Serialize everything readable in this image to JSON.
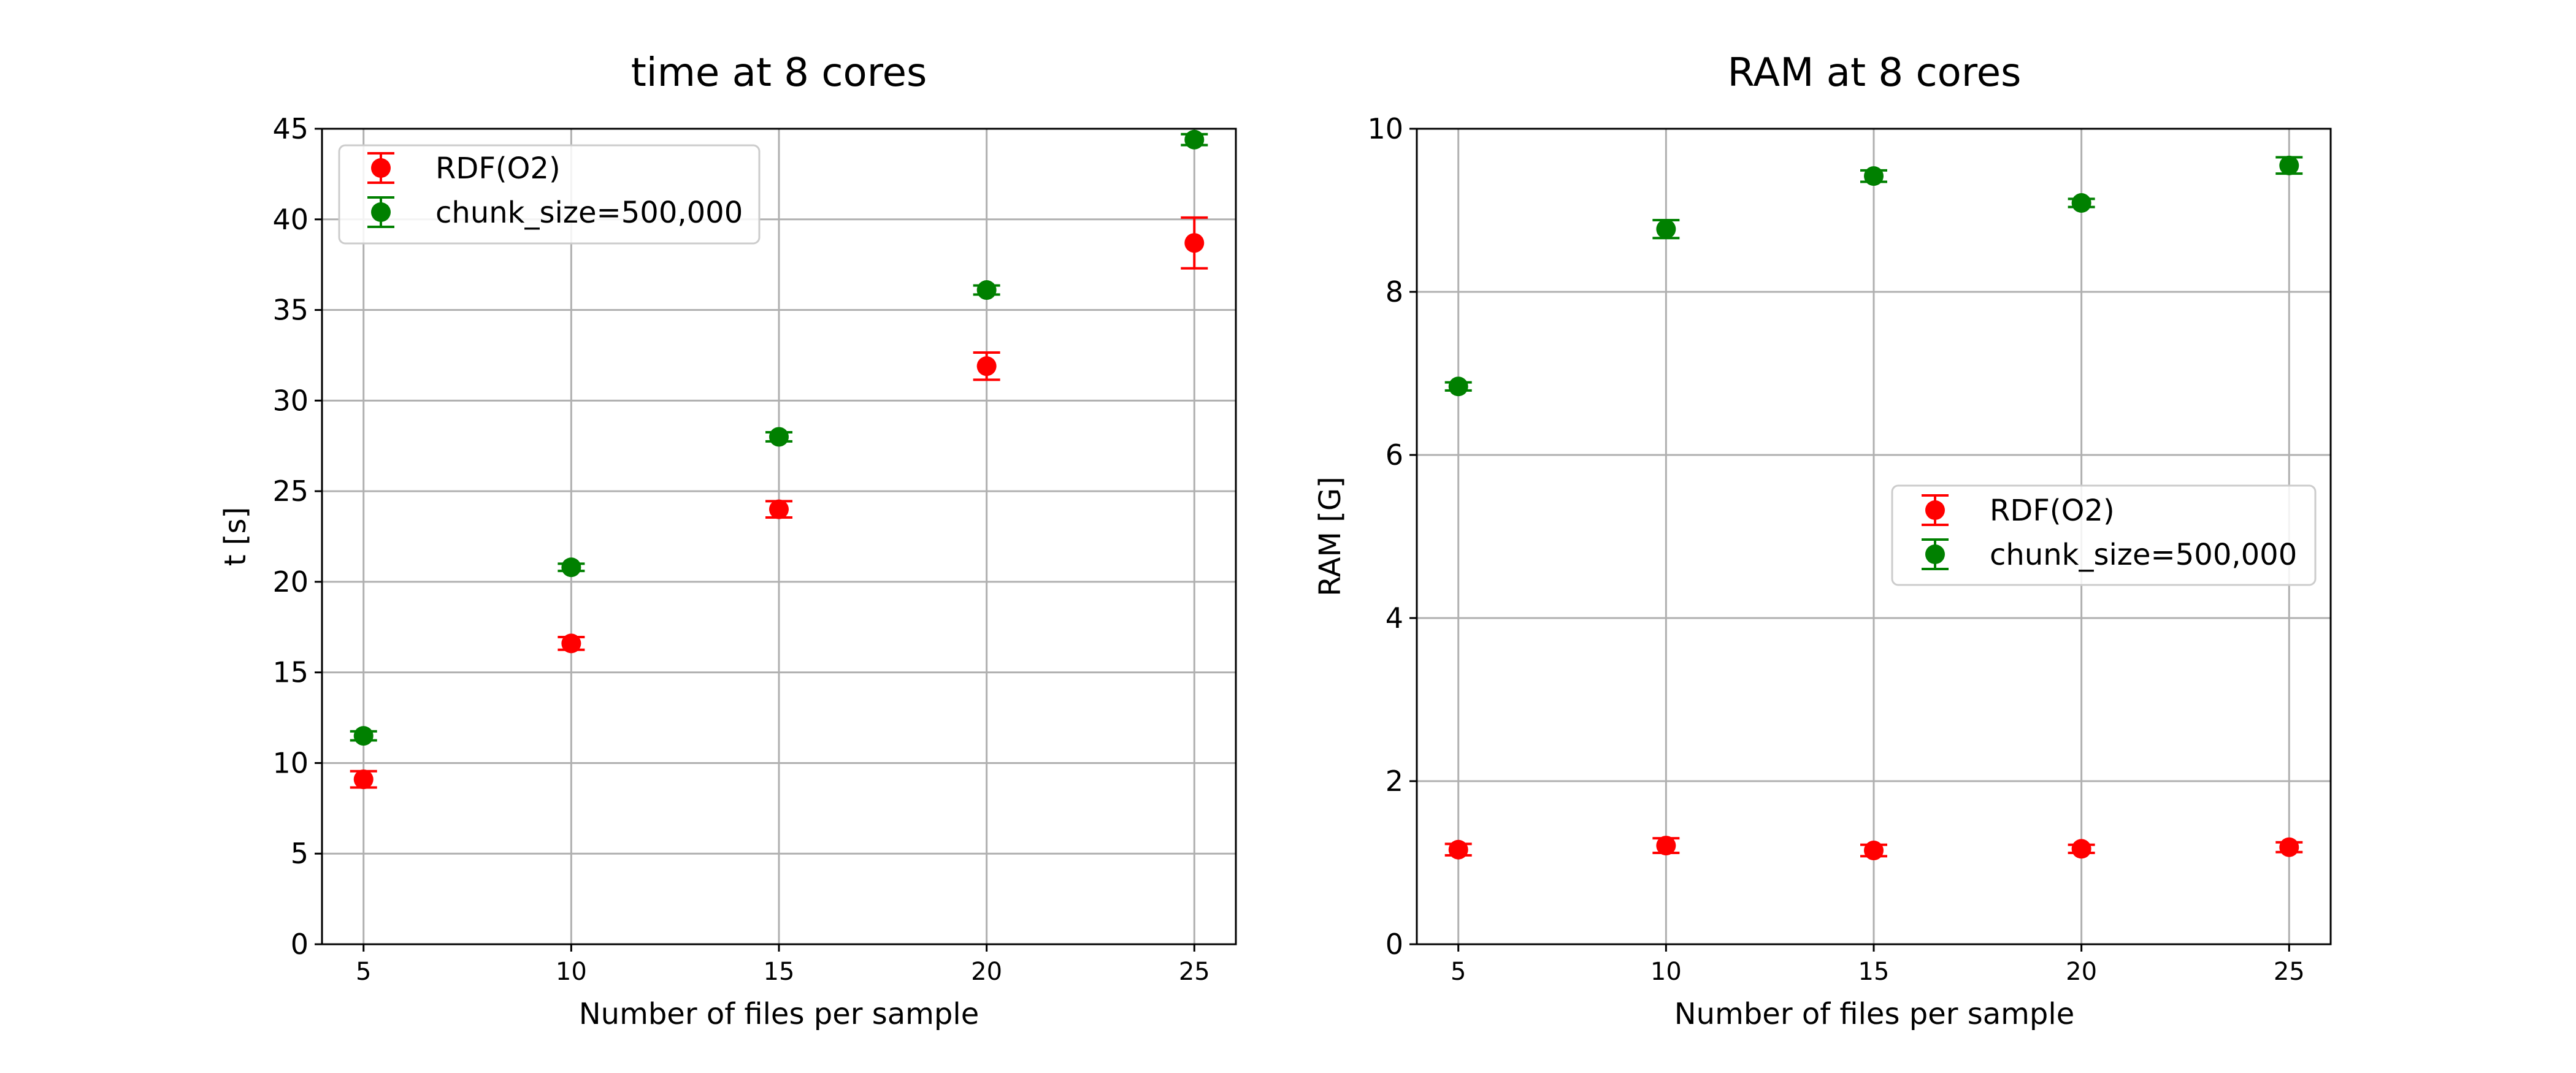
{
  "chart_data": [
    {
      "type": "scatter",
      "title": "time at 8 cores",
      "xlabel": "Number of files per sample",
      "ylabel": "t [s]",
      "xlim": [
        4,
        26
      ],
      "ylim": [
        0,
        45
      ],
      "xticks": [
        "5",
        "10",
        "15",
        "20",
        "25"
      ],
      "yticks": [
        "0",
        "5",
        "10",
        "15",
        "20",
        "25",
        "30",
        "35",
        "40",
        "45"
      ],
      "grid": true,
      "legend_position": "top-left",
      "x": [
        5,
        10,
        15,
        20,
        25
      ],
      "series": [
        {
          "name": "RDF(O2)",
          "color": "#ff0000",
          "values": [
            9.1,
            16.6,
            24.0,
            31.9,
            38.7
          ],
          "errors": [
            0.45,
            0.35,
            0.45,
            0.75,
            1.4
          ]
        },
        {
          "name": "chunk_size=500,000",
          "color": "#008000",
          "values": [
            11.5,
            20.8,
            28.0,
            36.1,
            44.4
          ],
          "errors": [
            0.25,
            0.2,
            0.25,
            0.25,
            0.3
          ]
        }
      ]
    },
    {
      "type": "scatter",
      "title": "RAM at 8 cores",
      "xlabel": "Number of files per sample",
      "ylabel": "RAM [G]",
      "xlim": [
        4,
        26
      ],
      "ylim": [
        0,
        10
      ],
      "xticks": [
        "5",
        "10",
        "15",
        "20",
        "25"
      ],
      "yticks": [
        "0",
        "2",
        "4",
        "6",
        "8",
        "10"
      ],
      "grid": true,
      "legend_position": "center-right",
      "x": [
        5,
        10,
        15,
        20,
        25
      ],
      "series": [
        {
          "name": "RDF(O2)",
          "color": "#ff0000",
          "values": [
            1.16,
            1.21,
            1.15,
            1.17,
            1.19
          ],
          "errors": [
            0.07,
            0.09,
            0.07,
            0.05,
            0.06
          ]
        },
        {
          "name": "chunk_size=500,000",
          "color": "#008000",
          "values": [
            6.84,
            8.77,
            9.42,
            9.09,
            9.55
          ],
          "errors": [
            0.05,
            0.11,
            0.07,
            0.05,
            0.1
          ]
        }
      ]
    }
  ]
}
